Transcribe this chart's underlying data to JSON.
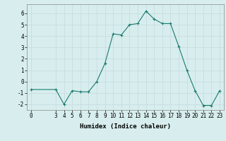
{
  "x": [
    0,
    3,
    4,
    5,
    6,
    7,
    8,
    9,
    10,
    11,
    12,
    13,
    14,
    15,
    16,
    17,
    18,
    19,
    20,
    21,
    22,
    23
  ],
  "y": [
    -0.7,
    -0.7,
    -2.0,
    -0.8,
    -0.9,
    -0.9,
    0.0,
    1.6,
    4.2,
    4.1,
    5.0,
    5.1,
    6.2,
    5.5,
    5.1,
    5.1,
    3.1,
    1.0,
    -0.8,
    -2.1,
    -2.1,
    -0.8
  ],
  "line_color": "#1a7a6e",
  "marker": "+",
  "marker_size": 3,
  "xlabel": "Humidex (Indice chaleur)",
  "xlim": [
    -0.5,
    23.5
  ],
  "ylim": [
    -2.5,
    6.8
  ],
  "yticks": [
    -2,
    -1,
    0,
    1,
    2,
    3,
    4,
    5,
    6
  ],
  "xticks": [
    0,
    3,
    4,
    5,
    6,
    7,
    8,
    9,
    10,
    11,
    12,
    13,
    14,
    15,
    16,
    17,
    18,
    19,
    20,
    21,
    22,
    23
  ],
  "grid_color": "#c8dede",
  "background_color": "#d8eeee",
  "tick_fontsize": 5.5,
  "label_fontsize": 6.5
}
